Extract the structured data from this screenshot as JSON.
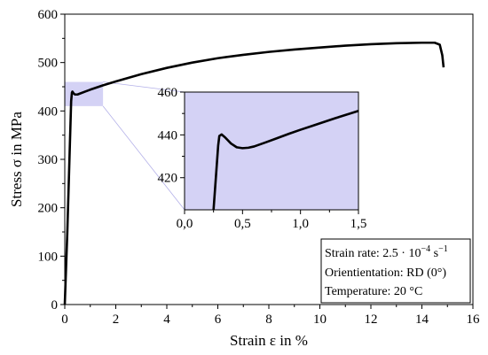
{
  "chart_data": [
    {
      "id": "main",
      "type": "line",
      "xlabel": "Strain ε in %",
      "ylabel": "Stress σ in MPa",
      "xlim": [
        0,
        16
      ],
      "ylim": [
        0,
        600
      ],
      "xticks": [
        0,
        2,
        4,
        6,
        8,
        10,
        12,
        14,
        16
      ],
      "yticks": [
        0,
        100,
        200,
        300,
        400,
        500,
        600
      ],
      "xtick_labels": [
        "0",
        "2",
        "4",
        "6",
        "8",
        "10",
        "12",
        "14",
        "16"
      ],
      "ytick_labels": [
        "0",
        "100",
        "200",
        "300",
        "400",
        "500",
        "600"
      ],
      "series": [
        {
          "x": [
            0,
            0.1,
            0.2,
            0.25,
            0.28,
            0.3,
            0.35,
            0.4,
            0.5,
            0.6,
            0.8,
            1.0,
            1.5,
            2.0,
            3.0,
            4.0,
            5.0,
            6.0,
            7.0,
            8.0,
            9.0,
            10.0,
            11.0,
            12.0,
            13.0,
            14.0,
            14.5,
            14.7,
            14.8,
            14.85
          ],
          "y": [
            0,
            150,
            330,
            420,
            438,
            440,
            436,
            434,
            434,
            436,
            440,
            444,
            453,
            461,
            476,
            489,
            500,
            509,
            516,
            522,
            527,
            531,
            535,
            538,
            540,
            541,
            541,
            537,
            515,
            490
          ]
        }
      ],
      "highlight_region": {
        "x": [
          0,
          1.5
        ],
        "y": [
          410,
          460
        ]
      },
      "highlight_color": "#d4d2f5",
      "line_color": "#000000"
    },
    {
      "id": "inset",
      "type": "line",
      "xlim": [
        0,
        1.5
      ],
      "ylim": [
        405,
        460
      ],
      "xticks": [
        0,
        0.5,
        1.0,
        1.5
      ],
      "yticks": [
        420,
        440,
        460
      ],
      "xtick_labels": [
        "0,0",
        "0,5",
        "1,0",
        "1,5"
      ],
      "ytick_labels": [
        "420",
        "440",
        "460"
      ],
      "series": [
        {
          "x": [
            0.25,
            0.27,
            0.29,
            0.3,
            0.32,
            0.35,
            0.4,
            0.45,
            0.5,
            0.55,
            0.6,
            0.7,
            0.8,
            0.9,
            1.0,
            1.1,
            1.2,
            1.3,
            1.4,
            1.5
          ],
          "y": [
            405,
            420,
            435,
            439.5,
            440.2,
            438.8,
            436,
            434.2,
            433.8,
            434,
            434.6,
            436.5,
            438.5,
            440.5,
            442.4,
            444.2,
            446,
            447.8,
            449.5,
            451.2
          ]
        }
      ],
      "background_color": "#d4d2f5",
      "line_color": "#000000"
    }
  ],
  "info_box": {
    "line1_prefix": "Strain rate: 2.5 · 10",
    "line1_exp": "−4",
    "line1_unit": " s",
    "line1_unit_exp": "−1",
    "line2": "Orientientation: RD (0°)",
    "line3": "Temperature: 20 °C"
  }
}
